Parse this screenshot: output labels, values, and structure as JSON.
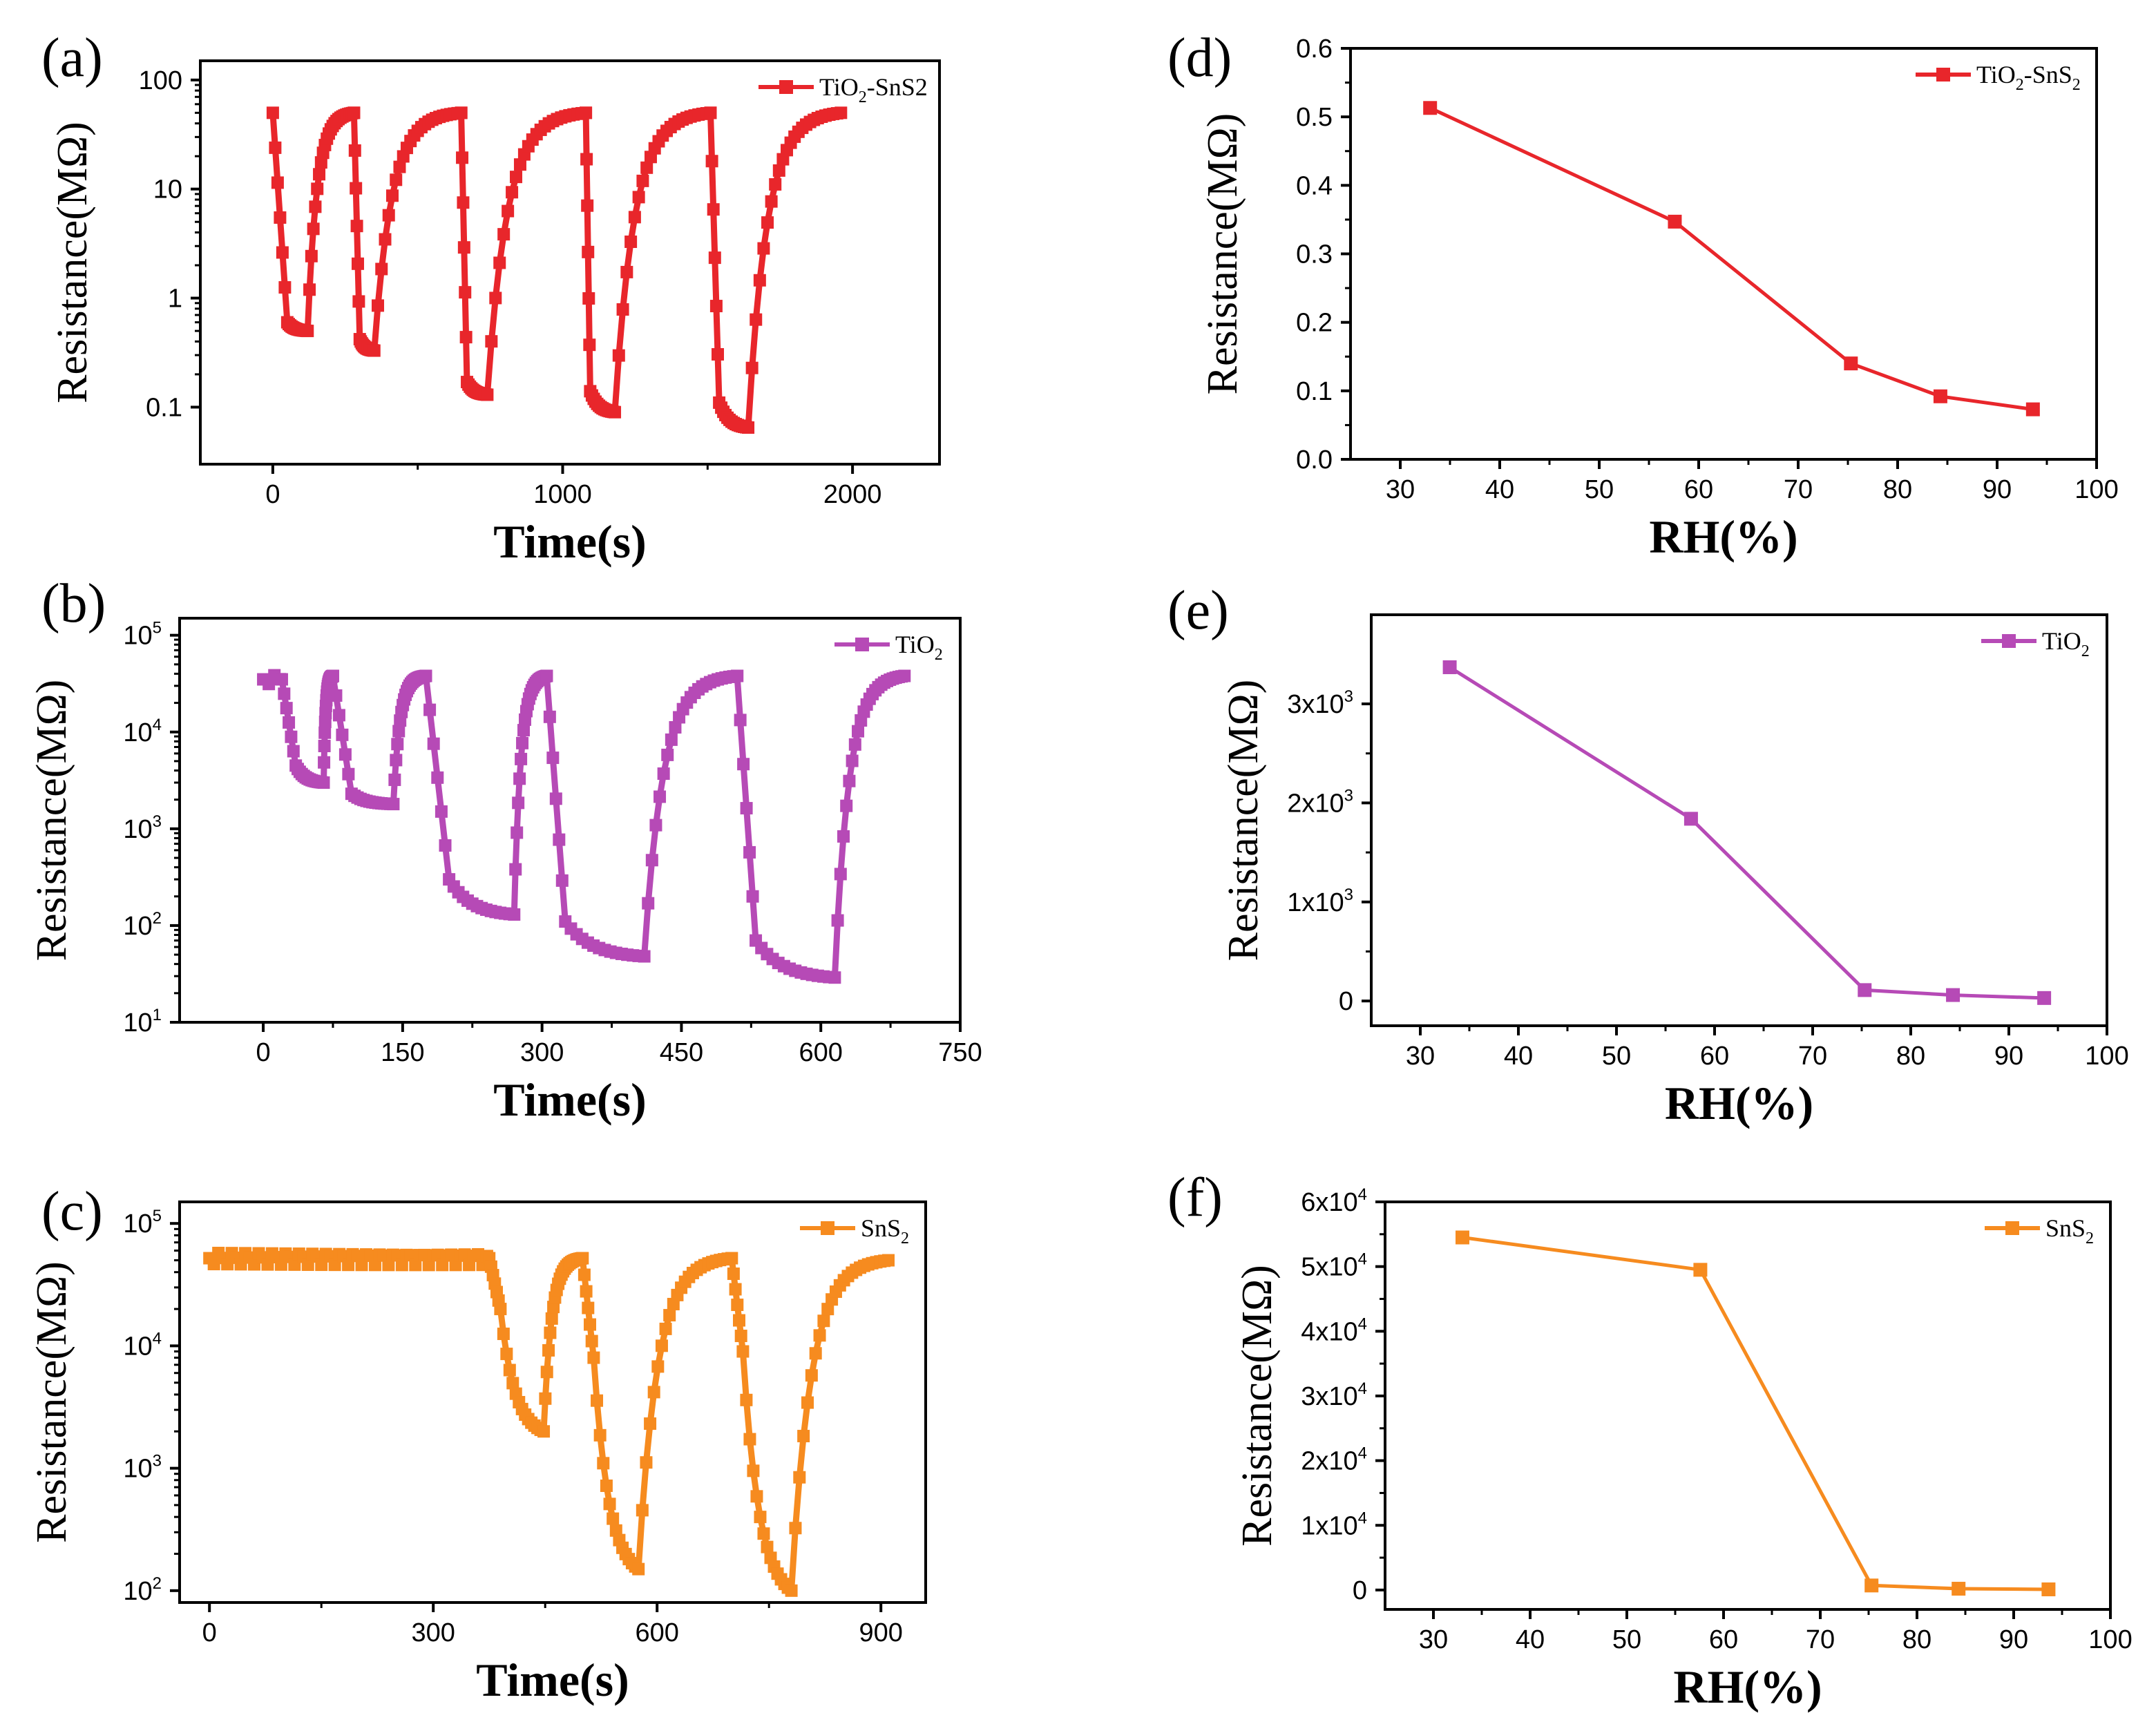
{
  "chart_data": [
    {
      "id": "a",
      "panel_label": "(a)",
      "type": "line",
      "yscale": "log",
      "xlabel": "Time(s)",
      "ylabel": "Resistance(MΩ)",
      "xlim": [
        -250,
        2300
      ],
      "ylim": [
        0.03,
        150
      ],
      "xticks": [
        0,
        1000,
        2000
      ],
      "xtick_labels": [
        "0",
        "1000",
        "2000"
      ],
      "yticks": [
        0.1,
        1,
        10,
        100
      ],
      "ytick_labels": [
        "0.1",
        "1",
        "10",
        "100"
      ],
      "color": "#e8262b",
      "legend": [
        "TiO",
        "2",
        "-SnS2"
      ],
      "cycles": [
        {
          "start": 0,
          "high": 50,
          "t_min": 50,
          "low_start": 0.6,
          "low_end": 0.5,
          "t_up": 120
        },
        {
          "start": 280,
          "high": 50,
          "t_min": 300,
          "low_start": 0.42,
          "low_end": 0.33,
          "t_up": 350
        },
        {
          "start": 650,
          "high": 50,
          "t_min": 670,
          "low_start": 0.17,
          "low_end": 0.13,
          "t_up": 740
        },
        {
          "start": 1080,
          "high": 50,
          "t_min": 1095,
          "low_start": 0.14,
          "low_end": 0.09,
          "t_up": 1180
        },
        {
          "start": 1510,
          "high": 50,
          "t_min": 1540,
          "low_start": 0.11,
          "low_end": 0.065,
          "t_up": 1640
        }
      ],
      "t_end": 1960,
      "high_end": 50
    },
    {
      "id": "b",
      "panel_label": "(b)",
      "type": "line",
      "yscale": "log",
      "xlabel": "Time(s)",
      "ylabel": "Resistance(MΩ)",
      "xlim": [
        -90,
        750
      ],
      "ylim": [
        10,
        150000
      ],
      "xticks": [
        0,
        150,
        300,
        450,
        600,
        750
      ],
      "xtick_labels": [
        "0",
        "150",
        "300",
        "450",
        "600",
        "750"
      ],
      "yticks": [
        10,
        100,
        1000,
        10000,
        100000
      ],
      "ytick_labels": [
        [
          "10",
          "1"
        ],
        [
          "10",
          "2"
        ],
        [
          "10",
          "3"
        ],
        [
          "10",
          "4"
        ],
        [
          "10",
          "5"
        ]
      ],
      "color": "#b64ab6",
      "legend": [
        "TiO",
        "2"
      ],
      "cycles": [
        {
          "start": 20,
          "high": 35000,
          "t_min": 35,
          "low_start": 4500,
          "low_end": 3000,
          "t_up": 65
        },
        {
          "start": 75,
          "high": 38000,
          "t_min": 95,
          "low_start": 2300,
          "low_end": 1800,
          "t_up": 140
        },
        {
          "start": 175,
          "high": 38000,
          "t_min": 200,
          "low_start": 300,
          "low_end": 130,
          "t_up": 270
        },
        {
          "start": 305,
          "high": 38000,
          "t_min": 325,
          "low_start": 110,
          "low_end": 48,
          "t_up": 410
        },
        {
          "start": 510,
          "high": 38000,
          "t_min": 530,
          "low_start": 70,
          "low_end": 29,
          "t_up": 615
        }
      ],
      "t_start": 0,
      "t_end": 690,
      "high_end": 38000
    },
    {
      "id": "c",
      "panel_label": "(c)",
      "type": "line",
      "yscale": "log",
      "xlabel": "Time(s)",
      "ylabel": "Resistance(MΩ)",
      "xlim": [
        -40,
        960
      ],
      "ylim": [
        80,
        150000
      ],
      "xticks": [
        0,
        300,
        600,
        900
      ],
      "xtick_labels": [
        "0",
        "300",
        "600",
        "900"
      ],
      "yticks": [
        100,
        1000,
        10000,
        100000
      ],
      "ytick_labels": [
        [
          "10",
          "2"
        ],
        [
          "10",
          "3"
        ],
        [
          "10",
          "4"
        ],
        [
          "10",
          "5"
        ]
      ],
      "color": "#f68b1f",
      "legend": [
        "SnS",
        "2"
      ],
      "cycles": [
        {
          "start": 375,
          "high": 52000,
          "t_min": 390,
          "low_start": 20000,
          "low_end": 2000,
          "t_up": 448
        },
        {
          "start": 500,
          "high": 52000,
          "t_min": 515,
          "low_start": 8000,
          "low_end": 150,
          "t_up": 575
        },
        {
          "start": 700,
          "high": 52000,
          "t_min": 715,
          "low_start": 9000,
          "low_end": 100,
          "t_up": 780
        }
      ],
      "t_start": 0,
      "t_end": 910,
      "high_end": 50000
    },
    {
      "id": "d",
      "panel_label": "(d)",
      "type": "line",
      "yscale": "linear",
      "xlabel": "RH(%)",
      "ylabel": "Resistance(MΩ)",
      "xlim": [
        25,
        100
      ],
      "ylim": [
        0,
        0.6
      ],
      "xticks": [
        30,
        40,
        50,
        60,
        70,
        80,
        90,
        100
      ],
      "xtick_labels": [
        "30",
        "40",
        "50",
        "60",
        "70",
        "80",
        "90",
        "100"
      ],
      "yticks": [
        0,
        0.1,
        0.2,
        0.3,
        0.4,
        0.5,
        0.6
      ],
      "ytick_labels": [
        "0.0",
        "0.1",
        "0.2",
        "0.3",
        "0.4",
        "0.5",
        "0.6"
      ],
      "color": "#e8262b",
      "legend": [
        "TiO",
        "2",
        "-SnS",
        "2"
      ],
      "x": [
        33,
        57.6,
        75.3,
        84.3,
        93.6
      ],
      "y": [
        0.513,
        0.347,
        0.14,
        0.092,
        0.073
      ]
    },
    {
      "id": "e",
      "panel_label": "(e)",
      "type": "line",
      "yscale": "linear",
      "xlabel": "RH(%)",
      "ylabel": "Resistance(MΩ)",
      "xlim": [
        25,
        100
      ],
      "ylim": [
        -250,
        3900
      ],
      "xticks": [
        30,
        40,
        50,
        60,
        70,
        80,
        90,
        100
      ],
      "xtick_labels": [
        "30",
        "40",
        "50",
        "60",
        "70",
        "80",
        "90",
        "100"
      ],
      "yticks": [
        0,
        1000,
        2000,
        3000
      ],
      "ytick_labels": [
        [
          "0",
          ""
        ],
        [
          "1x10",
          "3"
        ],
        [
          "2x10",
          "3"
        ],
        [
          "3x10",
          "3"
        ]
      ],
      "color": "#b64ab6",
      "legend": [
        "TiO",
        "2"
      ],
      "x": [
        33,
        57.6,
        75.3,
        84.3,
        93.6
      ],
      "y": [
        3370,
        1840,
        110,
        60,
        30
      ]
    },
    {
      "id": "f",
      "panel_label": "(f)",
      "type": "line",
      "yscale": "linear",
      "xlabel": "RH(%)",
      "ylabel": "Resistance(MΩ)",
      "xlim": [
        25,
        100
      ],
      "ylim": [
        -3000,
        60000
      ],
      "xticks": [
        30,
        40,
        50,
        60,
        70,
        80,
        90,
        100
      ],
      "xtick_labels": [
        "30",
        "40",
        "50",
        "60",
        "70",
        "80",
        "90",
        "100"
      ],
      "yticks": [
        0,
        10000,
        20000,
        30000,
        40000,
        50000,
        60000
      ],
      "ytick_labels": [
        [
          "0",
          ""
        ],
        [
          "1x10",
          "4"
        ],
        [
          "2x10",
          "4"
        ],
        [
          "3x10",
          "4"
        ],
        [
          "4x10",
          "4"
        ],
        [
          "5x10",
          "4"
        ],
        [
          "6x10",
          "4"
        ]
      ],
      "color": "#f68b1f",
      "legend": [
        "SnS",
        "2"
      ],
      "x": [
        33,
        57.6,
        75.3,
        84.3,
        93.6
      ],
      "y": [
        54500,
        49500,
        700,
        200,
        100
      ]
    }
  ]
}
